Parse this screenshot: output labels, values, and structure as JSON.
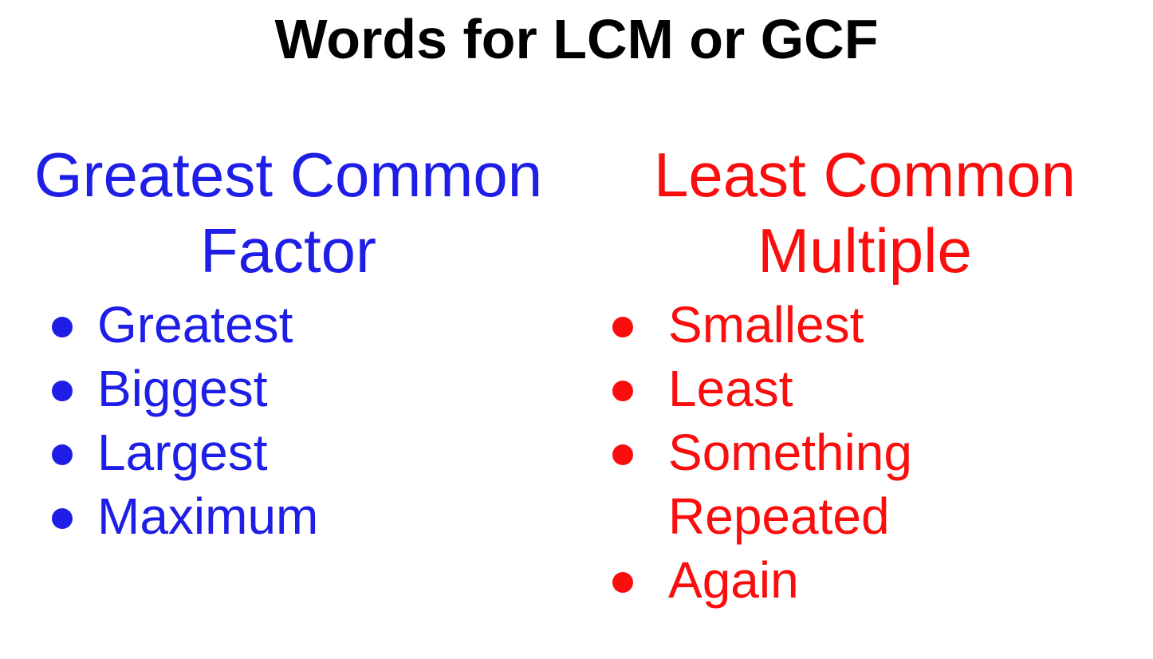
{
  "title": "Words for LCM or GCF",
  "colors": {
    "ink": "#000000",
    "bg": "#ffffff",
    "gcf": "#1e1ee6",
    "lcm": "#fa0d0d"
  },
  "gcf": {
    "heading": "Greatest Common Factor",
    "items": [
      "Greatest",
      "Biggest",
      "Largest",
      "Maximum"
    ]
  },
  "lcm": {
    "heading": "Least Common Multiple",
    "items": [
      "Smallest",
      "Least",
      "Something Repeated",
      "Again"
    ]
  }
}
